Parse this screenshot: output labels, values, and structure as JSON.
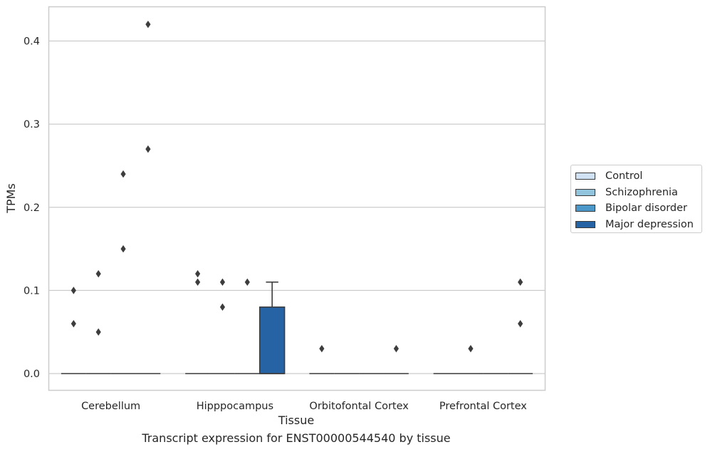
{
  "chart_data": {
    "type": "box",
    "title": "Transcript expression for ENST00000544540 by tissue",
    "xlabel": "Tissue",
    "ylabel": "TPMs",
    "ylim": [
      -0.02,
      0.44
    ],
    "yticks": [
      0.0,
      0.1,
      0.2,
      0.3,
      0.4
    ],
    "ytick_labels": [
      "0.0",
      "0.1",
      "0.2",
      "0.3",
      "0.4"
    ],
    "categories": [
      "Cerebellum",
      "Hipppocampus",
      "Orbitofontal Cortex",
      "Prefrontal Cortex"
    ],
    "grid": "horizontal",
    "legend_position": "right",
    "series": [
      {
        "name": "Control",
        "color": "#cfe1f2",
        "boxes": [
          {
            "q1": 0,
            "median": 0,
            "q3": 0,
            "whisker_low": 0,
            "whisker_high": 0,
            "outliers": [
              0.06,
              0.1
            ]
          },
          {
            "q1": 0,
            "median": 0,
            "q3": 0,
            "whisker_low": 0,
            "whisker_high": 0,
            "outliers": [
              0.11,
              0.12
            ]
          },
          {
            "q1": 0,
            "median": 0,
            "q3": 0,
            "whisker_low": 0,
            "whisker_high": 0,
            "outliers": [
              0.03
            ]
          },
          {
            "q1": 0,
            "median": 0,
            "q3": 0,
            "whisker_low": 0,
            "whisker_high": 0,
            "outliers": []
          }
        ]
      },
      {
        "name": "Schizophrenia",
        "color": "#93c4de",
        "boxes": [
          {
            "q1": 0,
            "median": 0,
            "q3": 0,
            "whisker_low": 0,
            "whisker_high": 0,
            "outliers": [
              0.05,
              0.12
            ]
          },
          {
            "q1": 0,
            "median": 0,
            "q3": 0,
            "whisker_low": 0,
            "whisker_high": 0,
            "outliers": [
              0.08,
              0.11
            ]
          },
          {
            "q1": 0,
            "median": 0,
            "q3": 0,
            "whisker_low": 0,
            "whisker_high": 0,
            "outliers": []
          },
          {
            "q1": 0,
            "median": 0,
            "q3": 0,
            "whisker_low": 0,
            "whisker_high": 0,
            "outliers": [
              0.03
            ]
          }
        ]
      },
      {
        "name": "Bipolar disorder",
        "color": "#4b97c9",
        "boxes": [
          {
            "q1": 0,
            "median": 0,
            "q3": 0,
            "whisker_low": 0,
            "whisker_high": 0,
            "outliers": [
              0.15,
              0.24
            ]
          },
          {
            "q1": 0,
            "median": 0,
            "q3": 0,
            "whisker_low": 0,
            "whisker_high": 0,
            "outliers": [
              0.11
            ]
          },
          {
            "q1": 0,
            "median": 0,
            "q3": 0,
            "whisker_low": 0,
            "whisker_high": 0,
            "outliers": []
          },
          {
            "q1": 0,
            "median": 0,
            "q3": 0,
            "whisker_low": 0,
            "whisker_high": 0,
            "outliers": []
          }
        ]
      },
      {
        "name": "Major depression",
        "color": "#2563a5",
        "boxes": [
          {
            "q1": 0,
            "median": 0,
            "q3": 0,
            "whisker_low": 0,
            "whisker_high": 0,
            "outliers": [
              0.27,
              0.42
            ]
          },
          {
            "q1": 0,
            "median": 0,
            "q3": 0.08,
            "whisker_low": 0,
            "whisker_high": 0.11,
            "outliers": []
          },
          {
            "q1": 0,
            "median": 0,
            "q3": 0,
            "whisker_low": 0,
            "whisker_high": 0,
            "outliers": [
              0.03
            ]
          },
          {
            "q1": 0,
            "median": 0,
            "q3": 0,
            "whisker_low": 0,
            "whisker_high": 0,
            "outliers": [
              0.06,
              0.11
            ]
          }
        ]
      }
    ]
  }
}
